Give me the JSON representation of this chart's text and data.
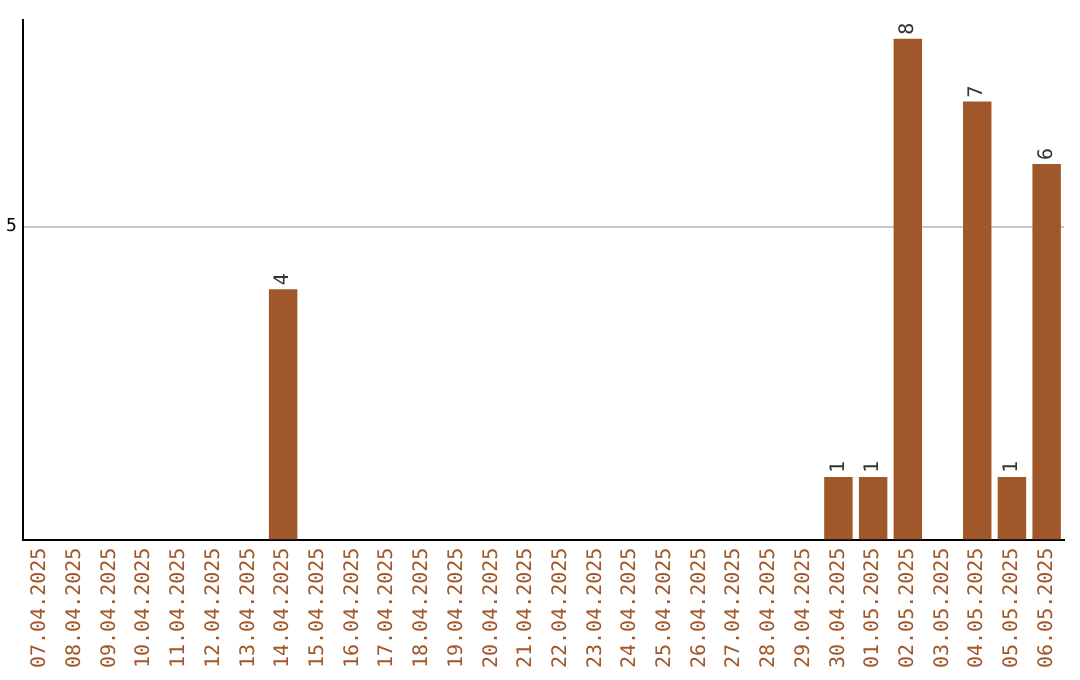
{
  "chart_data": {
    "type": "bar",
    "categories": [
      "07.04.2025",
      "08.04.2025",
      "09.04.2025",
      "10.04.2025",
      "11.04.2025",
      "12.04.2025",
      "13.04.2025",
      "14.04.2025",
      "15.04.2025",
      "16.04.2025",
      "17.04.2025",
      "18.04.2025",
      "19.04.2025",
      "20.04.2025",
      "21.04.2025",
      "22.04.2025",
      "23.04.2025",
      "24.04.2025",
      "25.04.2025",
      "26.04.2025",
      "27.04.2025",
      "28.04.2025",
      "29.04.2025",
      "30.04.2025",
      "01.05.2025",
      "02.05.2025",
      "03.05.2025",
      "04.05.2025",
      "05.05.2025",
      "06.05.2025"
    ],
    "values": [
      0,
      0,
      0,
      0,
      0,
      0,
      0,
      4,
      0,
      0,
      0,
      0,
      0,
      0,
      0,
      0,
      0,
      0,
      0,
      0,
      0,
      0,
      0,
      1,
      1,
      8,
      0,
      7,
      1,
      6
    ],
    "value_labels": [
      null,
      null,
      null,
      null,
      null,
      null,
      null,
      "4",
      null,
      null,
      null,
      null,
      null,
      null,
      null,
      null,
      null,
      null,
      null,
      null,
      null,
      null,
      null,
      "1",
      "1",
      "8",
      null,
      "7",
      "1",
      "6"
    ],
    "color": "#a0572a",
    "ylim": [
      0,
      8.3
    ],
    "yticks": [
      5
    ],
    "grid": "y",
    "legend": false
  }
}
